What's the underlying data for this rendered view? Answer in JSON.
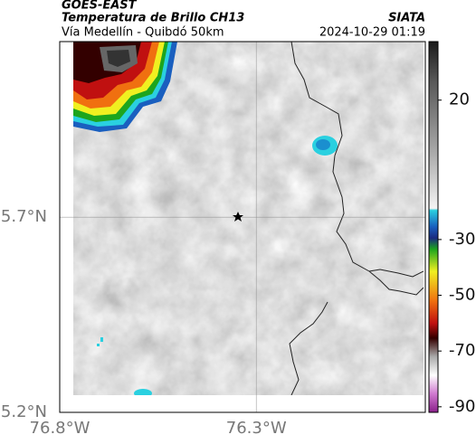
{
  "header": {
    "source": "GOES-EAST",
    "title": "Temperatura de Brillo CH13",
    "subtitle": "Vía Medellín - Quibdó 50km",
    "agency": "SIATA",
    "timestamp": "2024-10-29 01:19"
  },
  "map": {
    "xlim": [
      -76.8,
      -75.87
    ],
    "ylim": [
      5.2,
      6.15
    ],
    "xticks": [
      {
        "value": -76.8,
        "label": "76.8°W"
      },
      {
        "value": -76.3,
        "label": "76.3°W"
      }
    ],
    "yticks": [
      {
        "value": 5.2,
        "label": "5.2°N"
      },
      {
        "value": 5.7,
        "label": "5.7°N"
      }
    ],
    "grid": true
  },
  "colorbar": {
    "clim": [
      -92,
      41
    ],
    "ticks": [
      20,
      -30,
      -50,
      -70,
      -90
    ]
  }
}
